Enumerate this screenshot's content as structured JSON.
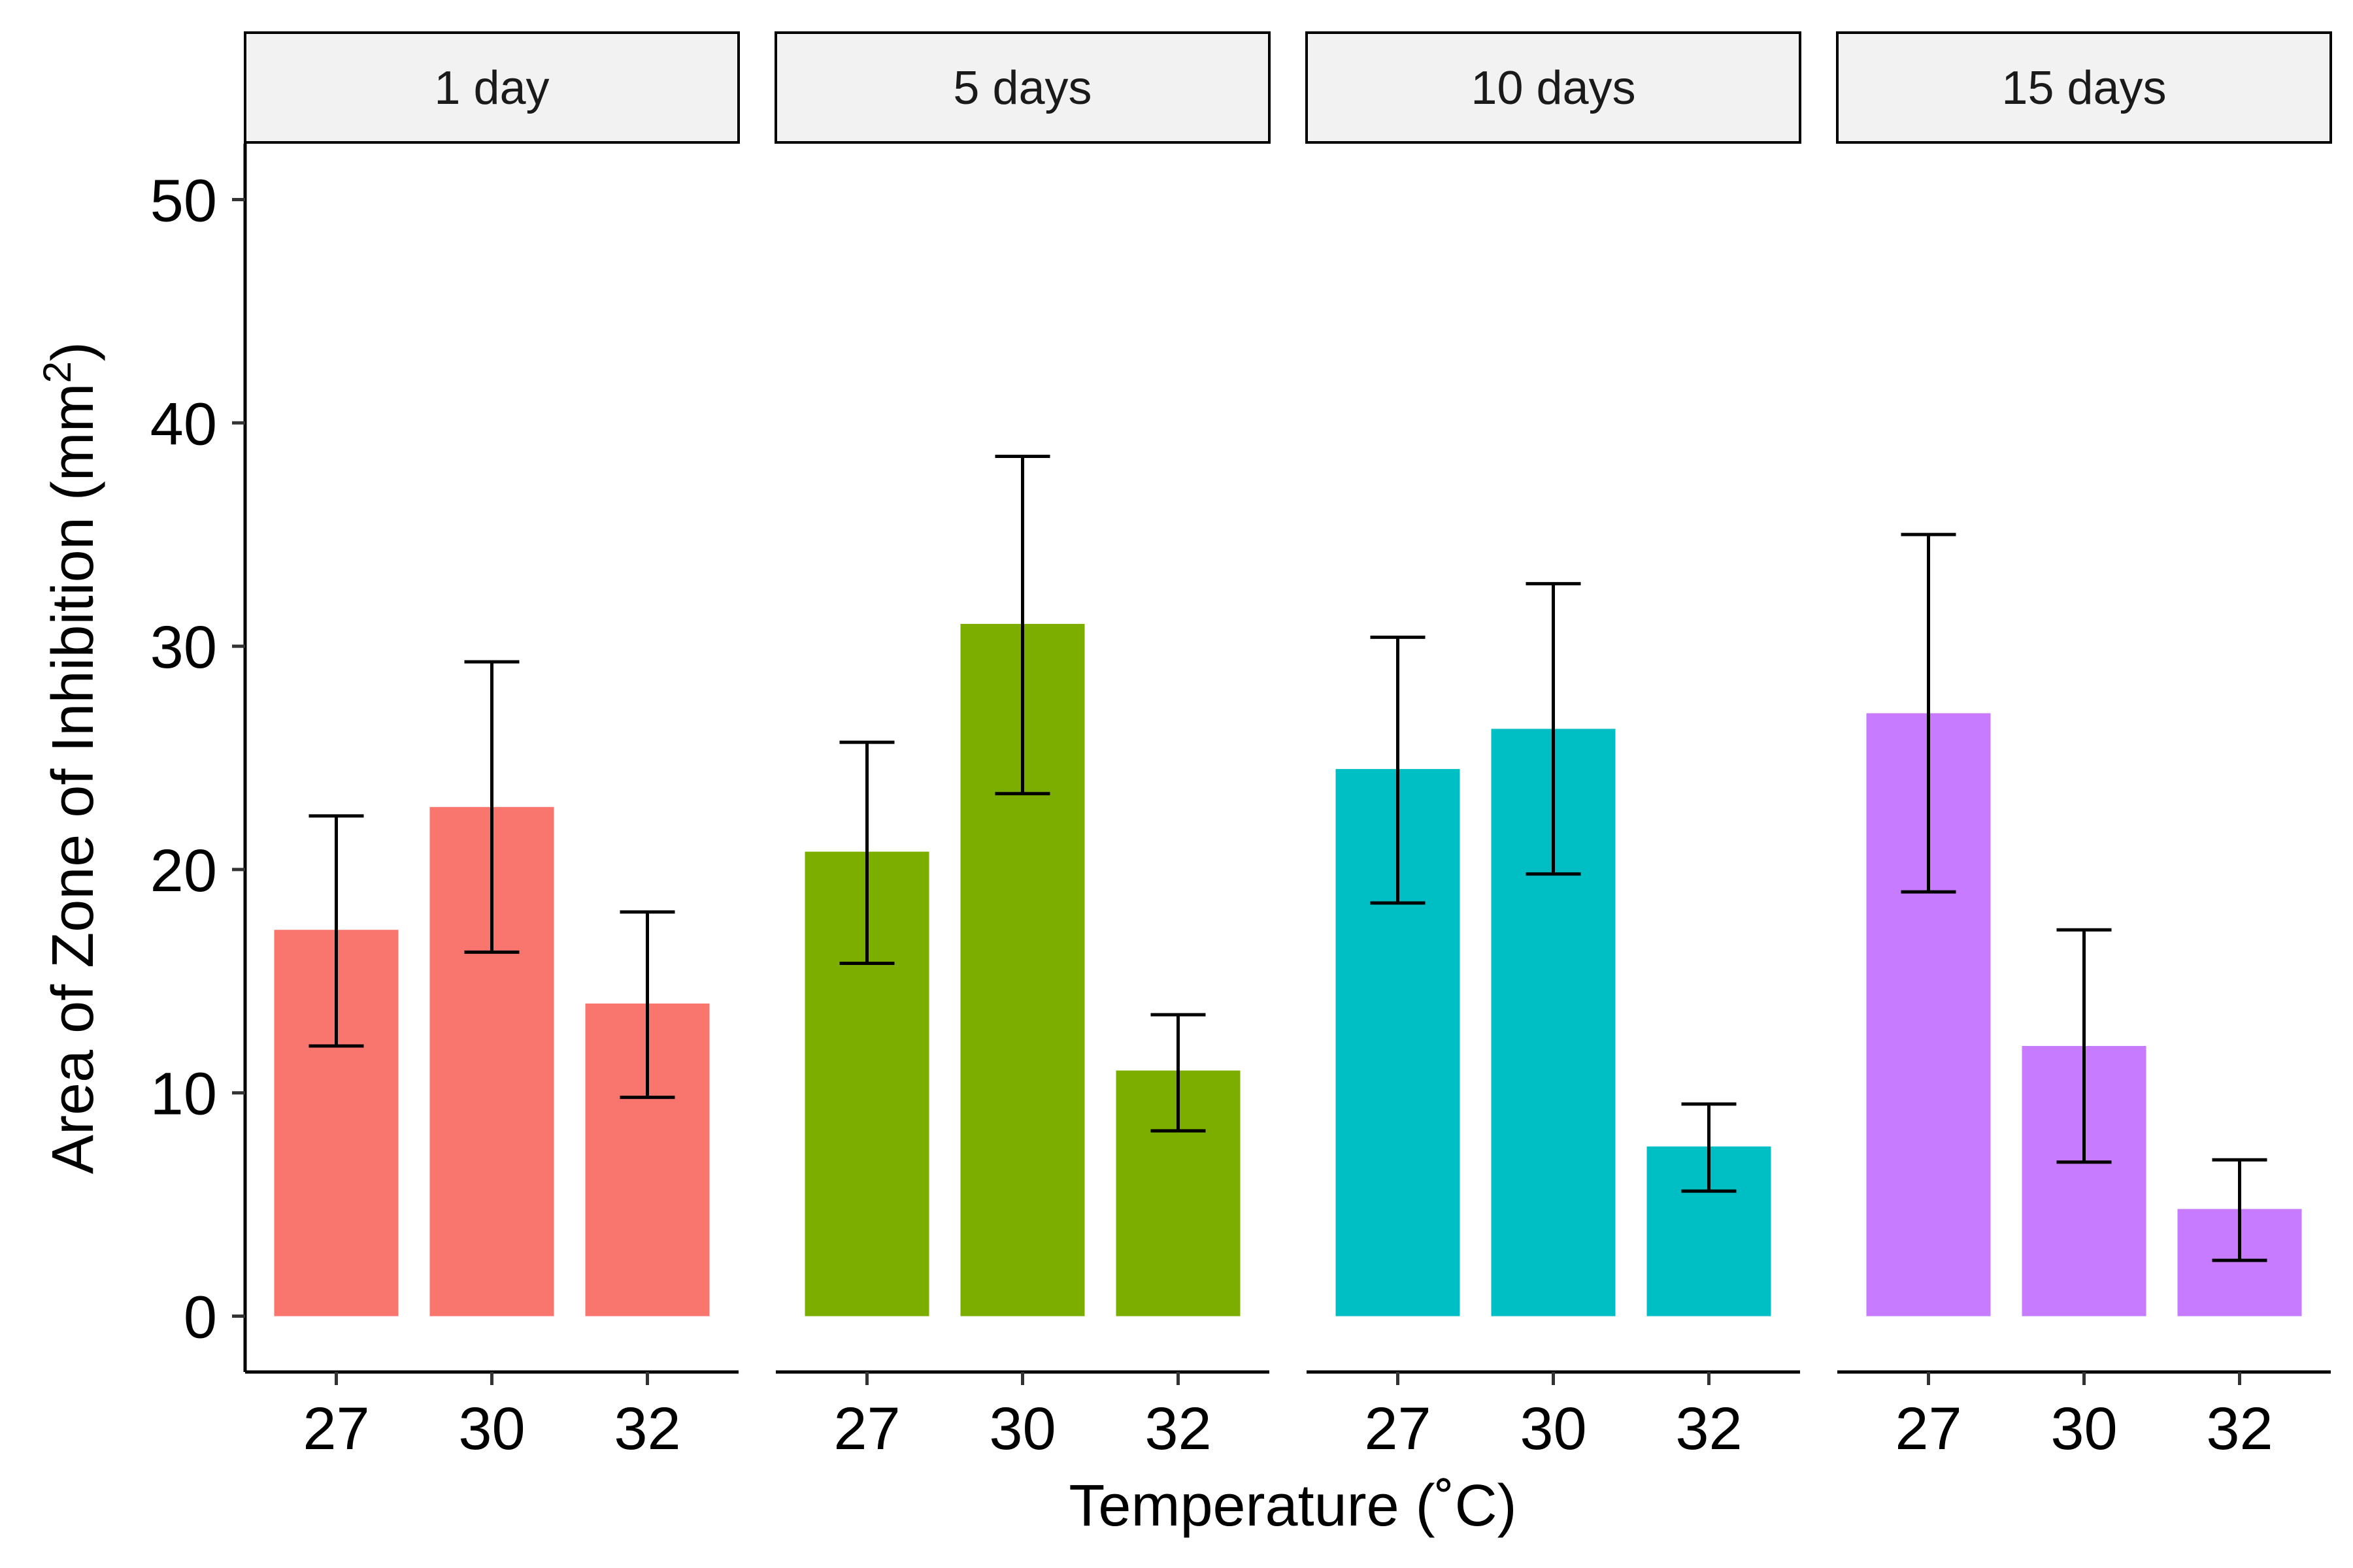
{
  "chart_data": {
    "type": "bar",
    "facets": [
      {
        "label": "1 day",
        "color": "#F8766D",
        "categories": [
          "27",
          "30",
          "32"
        ],
        "values": [
          17.3,
          22.8,
          14.0
        ],
        "error_low": [
          12.1,
          16.3,
          9.8
        ],
        "error_high": [
          22.4,
          29.3,
          18.1
        ]
      },
      {
        "label": "5 days",
        "color": "#7CAE00",
        "categories": [
          "27",
          "30",
          "32"
        ],
        "values": [
          20.8,
          31.0,
          11.0
        ],
        "error_low": [
          15.8,
          23.4,
          8.3
        ],
        "error_high": [
          25.7,
          38.5,
          13.5
        ]
      },
      {
        "label": "10 days",
        "color": "#00BFC4",
        "categories": [
          "27",
          "30",
          "32"
        ],
        "values": [
          24.5,
          26.3,
          7.6
        ],
        "error_low": [
          18.5,
          19.8,
          5.6
        ],
        "error_high": [
          30.4,
          32.8,
          9.5
        ]
      },
      {
        "label": "15 days",
        "color": "#C77CFF",
        "categories": [
          "27",
          "30",
          "32"
        ],
        "values": [
          27.0,
          12.1,
          4.8
        ],
        "error_low": [
          19.0,
          6.9,
          2.5
        ],
        "error_high": [
          35.0,
          17.3,
          7.0
        ]
      }
    ],
    "xlabel": "Temperature (˚C)",
    "ylabel": "Area of Zone of Inhibition (mm²)",
    "ylabel_main": "Area of Zone of Inhibition (mm",
    "ylabel_sup": "2",
    "ylabel_close": ")",
    "ylim": [
      -2.5,
      52.5
    ],
    "yticks": [
      0,
      10,
      20,
      30,
      40,
      50
    ],
    "grid": false,
    "legend": "none"
  }
}
